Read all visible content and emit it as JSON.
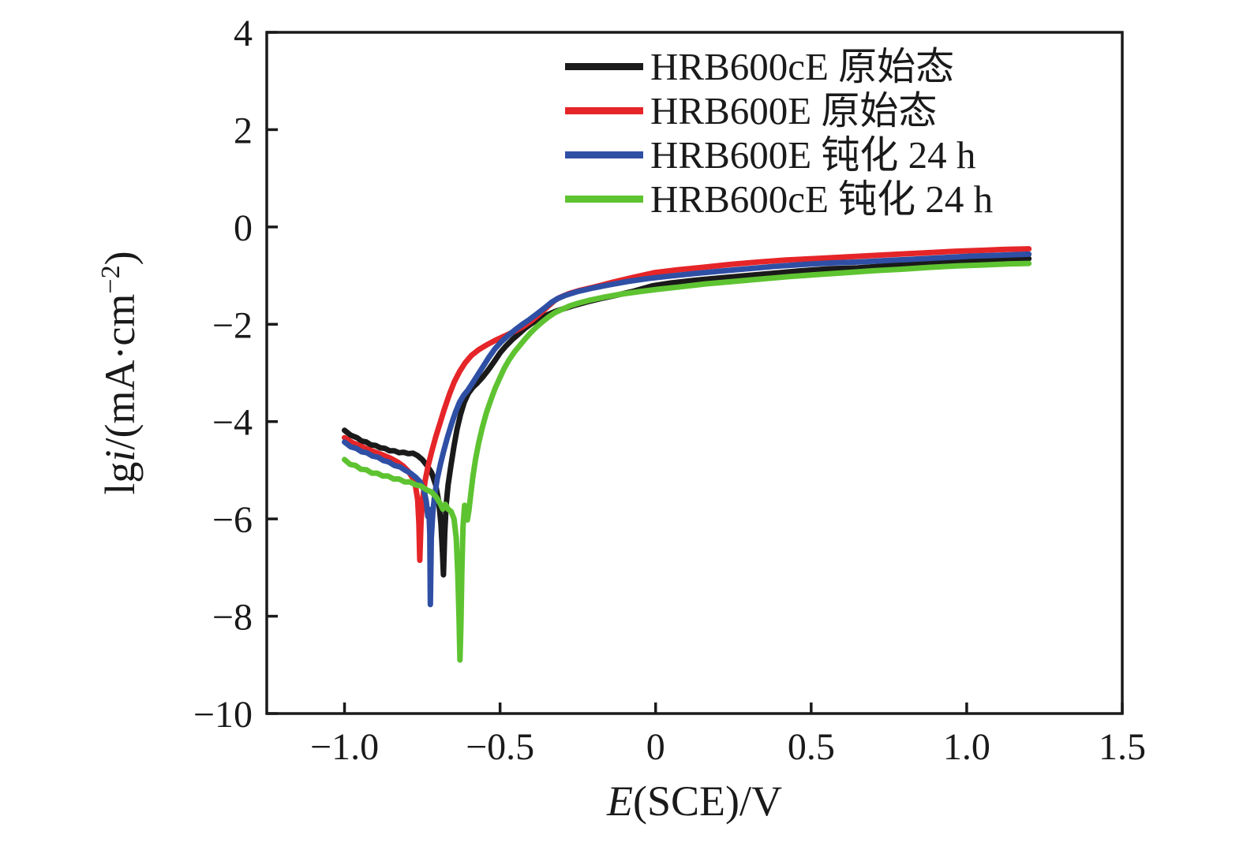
{
  "chart_data": {
    "type": "line",
    "title": "",
    "xlabel": "E(SCE)/V",
    "ylabel": "lgi/(mA·cm−2)",
    "xlabel_parts": {
      "var": "E",
      "rest": "(SCE)/V"
    },
    "ylabel_parts": {
      "prefix": "lg",
      "var": "i",
      "mid": "/(mA·cm",
      "sup": "−2",
      "suffix": ")"
    },
    "xlim": [
      -1.25,
      1.5
    ],
    "ylim": [
      -10,
      4
    ],
    "xticks": [
      -1.0,
      -0.5,
      0,
      0.5,
      1.0,
      1.5
    ],
    "xtick_labels": [
      "−1.0",
      "−0.5",
      "0",
      "0.5",
      "1.0",
      "1.5"
    ],
    "yticks": [
      4,
      2,
      0,
      -2,
      -4,
      -6,
      -8,
      -10
    ],
    "ytick_labels": [
      "4",
      "2",
      "0",
      "−2",
      "−4",
      "−6",
      "−8",
      "−10"
    ],
    "grid": false,
    "legend_position": "top-inside",
    "axis_color": "#1a1a1a",
    "series": [
      {
        "name": "HRB600cE 原始态",
        "color": "#1a1a1a",
        "points": [
          [
            -1.0,
            -4.18
          ],
          [
            -0.98,
            -4.28
          ],
          [
            -0.96,
            -4.33
          ],
          [
            -0.945,
            -4.4
          ],
          [
            -0.93,
            -4.42
          ],
          [
            -0.915,
            -4.48
          ],
          [
            -0.9,
            -4.49
          ],
          [
            -0.885,
            -4.54
          ],
          [
            -0.87,
            -4.55
          ],
          [
            -0.855,
            -4.6
          ],
          [
            -0.84,
            -4.6
          ],
          [
            -0.825,
            -4.64
          ],
          [
            -0.81,
            -4.63
          ],
          [
            -0.795,
            -4.66
          ],
          [
            -0.78,
            -4.65
          ],
          [
            -0.765,
            -4.7
          ],
          [
            -0.75,
            -4.78
          ],
          [
            -0.735,
            -4.9
          ],
          [
            -0.72,
            -5.05
          ],
          [
            -0.707,
            -5.3
          ],
          [
            -0.697,
            -5.65
          ],
          [
            -0.69,
            -6.1
          ],
          [
            -0.685,
            -6.7
          ],
          [
            -0.682,
            -7.15
          ],
          [
            -0.678,
            -6.3
          ],
          [
            -0.673,
            -5.7
          ],
          [
            -0.667,
            -5.3
          ],
          [
            -0.658,
            -4.9
          ],
          [
            -0.648,
            -4.5
          ],
          [
            -0.638,
            -4.15
          ],
          [
            -0.627,
            -3.85
          ],
          [
            -0.615,
            -3.6
          ],
          [
            -0.602,
            -3.42
          ],
          [
            -0.588,
            -3.3
          ],
          [
            -0.572,
            -3.2
          ],
          [
            -0.555,
            -3.08
          ],
          [
            -0.537,
            -2.93
          ],
          [
            -0.518,
            -2.76
          ],
          [
            -0.499,
            -2.58
          ],
          [
            -0.48,
            -2.44
          ],
          [
            -0.46,
            -2.31
          ],
          [
            -0.44,
            -2.2
          ],
          [
            -0.419,
            -2.08
          ],
          [
            -0.398,
            -1.98
          ],
          [
            -0.375,
            -1.89
          ],
          [
            -0.35,
            -1.81
          ],
          [
            -0.324,
            -1.74
          ],
          [
            -0.295,
            -1.68
          ],
          [
            -0.26,
            -1.61
          ],
          [
            -0.22,
            -1.54
          ],
          [
            -0.175,
            -1.47
          ],
          [
            -0.125,
            -1.4
          ],
          [
            -0.07,
            -1.32
          ],
          [
            -0.01,
            -1.21
          ],
          [
            0.05,
            -1.15
          ],
          [
            0.12,
            -1.1
          ],
          [
            0.2,
            -1.05
          ],
          [
            0.29,
            -1.0
          ],
          [
            0.38,
            -0.95
          ],
          [
            0.47,
            -0.9
          ],
          [
            0.56,
            -0.86
          ],
          [
            0.65,
            -0.84
          ],
          [
            0.74,
            -0.8
          ],
          [
            0.83,
            -0.76
          ],
          [
            0.92,
            -0.73
          ],
          [
            1.01,
            -0.7
          ],
          [
            1.1,
            -0.67
          ],
          [
            1.2,
            -0.65
          ]
        ]
      },
      {
        "name": "HRB600E 原始态",
        "color": "#e52528",
        "points": [
          [
            -1.0,
            -4.33
          ],
          [
            -0.975,
            -4.43
          ],
          [
            -0.95,
            -4.5
          ],
          [
            -0.925,
            -4.57
          ],
          [
            -0.9,
            -4.63
          ],
          [
            -0.875,
            -4.69
          ],
          [
            -0.85,
            -4.76
          ],
          [
            -0.83,
            -4.83
          ],
          [
            -0.81,
            -4.92
          ],
          [
            -0.795,
            -5.02
          ],
          [
            -0.782,
            -5.15
          ],
          [
            -0.772,
            -5.32
          ],
          [
            -0.765,
            -5.6
          ],
          [
            -0.761,
            -6.1
          ],
          [
            -0.758,
            -6.85
          ],
          [
            -0.754,
            -6.05
          ],
          [
            -0.749,
            -5.6
          ],
          [
            -0.741,
            -5.22
          ],
          [
            -0.731,
            -4.9
          ],
          [
            -0.719,
            -4.6
          ],
          [
            -0.707,
            -4.32
          ],
          [
            -0.694,
            -4.05
          ],
          [
            -0.679,
            -3.74
          ],
          [
            -0.663,
            -3.44
          ],
          [
            -0.647,
            -3.18
          ],
          [
            -0.63,
            -2.97
          ],
          [
            -0.612,
            -2.79
          ],
          [
            -0.592,
            -2.64
          ],
          [
            -0.568,
            -2.52
          ],
          [
            -0.542,
            -2.42
          ],
          [
            -0.512,
            -2.32
          ],
          [
            -0.482,
            -2.23
          ],
          [
            -0.452,
            -2.14
          ],
          [
            -0.424,
            -2.04
          ],
          [
            -0.402,
            -1.94
          ],
          [
            -0.382,
            -1.84
          ],
          [
            -0.362,
            -1.73
          ],
          [
            -0.342,
            -1.61
          ],
          [
            -0.324,
            -1.51
          ],
          [
            -0.305,
            -1.44
          ],
          [
            -0.278,
            -1.37
          ],
          [
            -0.242,
            -1.3
          ],
          [
            -0.195,
            -1.23
          ],
          [
            -0.14,
            -1.14
          ],
          [
            -0.075,
            -1.04
          ],
          [
            -0.005,
            -0.94
          ],
          [
            0.07,
            -0.88
          ],
          [
            0.15,
            -0.83
          ],
          [
            0.24,
            -0.77
          ],
          [
            0.33,
            -0.72
          ],
          [
            0.42,
            -0.68
          ],
          [
            0.51,
            -0.65
          ],
          [
            0.6,
            -0.62
          ],
          [
            0.69,
            -0.59
          ],
          [
            0.78,
            -0.56
          ],
          [
            0.87,
            -0.53
          ],
          [
            0.96,
            -0.5
          ],
          [
            1.05,
            -0.48
          ],
          [
            1.13,
            -0.46
          ],
          [
            1.2,
            -0.45
          ]
        ]
      },
      {
        "name": "HRB600E 钝化 24 h",
        "color": "#2f4fa5",
        "points": [
          [
            -1.0,
            -4.42
          ],
          [
            -0.98,
            -4.52
          ],
          [
            -0.962,
            -4.55
          ],
          [
            -0.945,
            -4.62
          ],
          [
            -0.928,
            -4.64
          ],
          [
            -0.91,
            -4.71
          ],
          [
            -0.893,
            -4.73
          ],
          [
            -0.875,
            -4.8
          ],
          [
            -0.858,
            -4.83
          ],
          [
            -0.84,
            -4.9
          ],
          [
            -0.822,
            -4.93
          ],
          [
            -0.805,
            -5.0
          ],
          [
            -0.788,
            -5.06
          ],
          [
            -0.772,
            -5.14
          ],
          [
            -0.757,
            -5.24
          ],
          [
            -0.745,
            -5.4
          ],
          [
            -0.737,
            -5.65
          ],
          [
            -0.732,
            -5.95
          ],
          [
            -0.729,
            -5.8
          ],
          [
            -0.726,
            -6.3
          ],
          [
            -0.724,
            -7.76
          ],
          [
            -0.721,
            -6.4
          ],
          [
            -0.716,
            -5.85
          ],
          [
            -0.71,
            -5.5
          ],
          [
            -0.702,
            -5.18
          ],
          [
            -0.692,
            -4.88
          ],
          [
            -0.681,
            -4.6
          ],
          [
            -0.669,
            -4.32
          ],
          [
            -0.656,
            -4.05
          ],
          [
            -0.643,
            -3.8
          ],
          [
            -0.63,
            -3.6
          ],
          [
            -0.617,
            -3.46
          ],
          [
            -0.604,
            -3.36
          ],
          [
            -0.59,
            -3.22
          ],
          [
            -0.573,
            -3.05
          ],
          [
            -0.555,
            -2.87
          ],
          [
            -0.536,
            -2.68
          ],
          [
            -0.516,
            -2.5
          ],
          [
            -0.496,
            -2.36
          ],
          [
            -0.474,
            -2.23
          ],
          [
            -0.451,
            -2.11
          ],
          [
            -0.428,
            -2.0
          ],
          [
            -0.405,
            -1.9
          ],
          [
            -0.38,
            -1.78
          ],
          [
            -0.356,
            -1.66
          ],
          [
            -0.335,
            -1.55
          ],
          [
            -0.315,
            -1.47
          ],
          [
            -0.288,
            -1.4
          ],
          [
            -0.252,
            -1.33
          ],
          [
            -0.205,
            -1.26
          ],
          [
            -0.15,
            -1.19
          ],
          [
            -0.09,
            -1.12
          ],
          [
            -0.025,
            -1.06
          ],
          [
            0.045,
            -1.01
          ],
          [
            0.12,
            -0.96
          ],
          [
            0.205,
            -0.91
          ],
          [
            0.295,
            -0.86
          ],
          [
            0.385,
            -0.81
          ],
          [
            0.475,
            -0.77
          ],
          [
            0.565,
            -0.74
          ],
          [
            0.655,
            -0.72
          ],
          [
            0.745,
            -0.69
          ],
          [
            0.835,
            -0.66
          ],
          [
            0.925,
            -0.63
          ],
          [
            1.015,
            -0.6
          ],
          [
            1.105,
            -0.58
          ],
          [
            1.2,
            -0.56
          ]
        ]
      },
      {
        "name": "HRB600cE 钝化 24 h",
        "color": "#5ec331",
        "points": [
          [
            -1.0,
            -4.78
          ],
          [
            -0.982,
            -4.88
          ],
          [
            -0.965,
            -4.9
          ],
          [
            -0.947,
            -4.98
          ],
          [
            -0.93,
            -4.99
          ],
          [
            -0.912,
            -5.06
          ],
          [
            -0.895,
            -5.06
          ],
          [
            -0.877,
            -5.12
          ],
          [
            -0.86,
            -5.12
          ],
          [
            -0.842,
            -5.18
          ],
          [
            -0.825,
            -5.18
          ],
          [
            -0.807,
            -5.24
          ],
          [
            -0.79,
            -5.24
          ],
          [
            -0.772,
            -5.3
          ],
          [
            -0.755,
            -5.32
          ],
          [
            -0.737,
            -5.4
          ],
          [
            -0.72,
            -5.45
          ],
          [
            -0.705,
            -5.55
          ],
          [
            -0.693,
            -5.68
          ],
          [
            -0.684,
            -5.8
          ],
          [
            -0.676,
            -5.7
          ],
          [
            -0.667,
            -5.8
          ],
          [
            -0.657,
            -5.85
          ],
          [
            -0.648,
            -6.0
          ],
          [
            -0.641,
            -6.4
          ],
          [
            -0.636,
            -7.1
          ],
          [
            -0.632,
            -8.0
          ],
          [
            -0.629,
            -8.9
          ],
          [
            -0.626,
            -8.2
          ],
          [
            -0.623,
            -7.1
          ],
          [
            -0.619,
            -6.15
          ],
          [
            -0.614,
            -5.72
          ],
          [
            -0.609,
            -5.85
          ],
          [
            -0.605,
            -6.02
          ],
          [
            -0.6,
            -5.82
          ],
          [
            -0.594,
            -5.48
          ],
          [
            -0.587,
            -5.12
          ],
          [
            -0.579,
            -4.78
          ],
          [
            -0.569,
            -4.45
          ],
          [
            -0.557,
            -4.12
          ],
          [
            -0.544,
            -3.82
          ],
          [
            -0.53,
            -3.56
          ],
          [
            -0.516,
            -3.32
          ],
          [
            -0.502,
            -3.12
          ],
          [
            -0.487,
            -2.91
          ],
          [
            -0.471,
            -2.73
          ],
          [
            -0.454,
            -2.57
          ],
          [
            -0.436,
            -2.43
          ],
          [
            -0.418,
            -2.29
          ],
          [
            -0.4,
            -2.16
          ],
          [
            -0.382,
            -2.05
          ],
          [
            -0.364,
            -1.95
          ],
          [
            -0.344,
            -1.85
          ],
          [
            -0.323,
            -1.76
          ],
          [
            -0.3,
            -1.69
          ],
          [
            -0.275,
            -1.62
          ],
          [
            -0.245,
            -1.56
          ],
          [
            -0.208,
            -1.5
          ],
          [
            -0.163,
            -1.44
          ],
          [
            -0.11,
            -1.38
          ],
          [
            -0.052,
            -1.33
          ],
          [
            0.008,
            -1.28
          ],
          [
            0.08,
            -1.23
          ],
          [
            0.16,
            -1.17
          ],
          [
            0.25,
            -1.12
          ],
          [
            0.34,
            -1.07
          ],
          [
            0.43,
            -1.02
          ],
          [
            0.52,
            -0.98
          ],
          [
            0.61,
            -0.94
          ],
          [
            0.7,
            -0.9
          ],
          [
            0.79,
            -0.87
          ],
          [
            0.88,
            -0.83
          ],
          [
            0.97,
            -0.8
          ],
          [
            1.06,
            -0.78
          ],
          [
            1.13,
            -0.76
          ],
          [
            1.2,
            -0.75
          ]
        ]
      }
    ]
  }
}
